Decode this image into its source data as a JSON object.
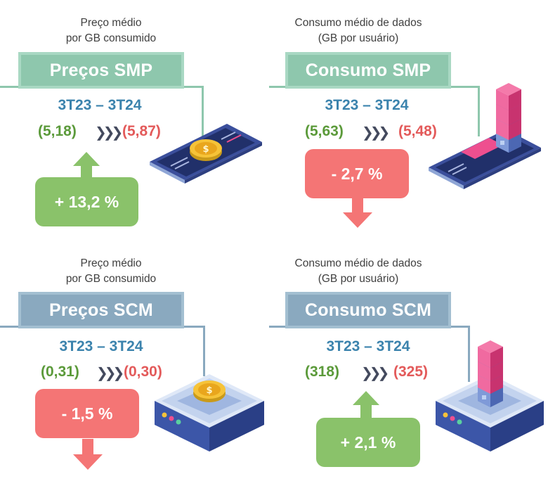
{
  "panels": {
    "smp_price": {
      "subtitle_line1": "Preço médio",
      "subtitle_line2": "por GB consumido",
      "banner": "Preços SMP",
      "period": "3T23 – 3T24",
      "old_value": "(5,18)",
      "new_value": "(5,87)",
      "change": "+ 13,2 %",
      "direction": "up",
      "icon": "smartphone-coin-icon"
    },
    "smp_consumption": {
      "subtitle_line1": "Consumo médio de dados",
      "subtitle_line2": "(GB por usuário)",
      "banner": "Consumo SMP",
      "period": "3T23 – 3T24",
      "old_value": "(5,63)",
      "new_value": "(5,48)",
      "change": "- 2,7 %",
      "direction": "down",
      "icon": "smartphone-data-blocks-icon"
    },
    "scm_price": {
      "subtitle_line1": "Preço médio",
      "subtitle_line2": "por GB consumido",
      "banner": "Preços SCM",
      "period": "3T23 – 3T24",
      "old_value": "(0,31)",
      "new_value": "(0,30)",
      "change": "- 1,5 %",
      "direction": "down",
      "icon": "router-coin-icon"
    },
    "scm_consumption": {
      "subtitle_line1": "Consumo médio de dados",
      "subtitle_line2": "(GB por usuário)",
      "banner": "Consumo SCM",
      "period": "3T23 – 3T24",
      "old_value": "(318)",
      "new_value": "(325)",
      "change": "+ 2,1 %",
      "direction": "up",
      "icon": "router-data-blocks-icon"
    }
  },
  "separator": "»",
  "colors": {
    "green_banner": "#8ec7ad",
    "blue_banner": "#8aa9bf",
    "period_blue": "#3b83ad",
    "old_value_green": "#5b9a3a",
    "new_value_red": "#e35a5a",
    "increase_badge": "#8ac26a",
    "decrease_badge": "#f47575"
  }
}
